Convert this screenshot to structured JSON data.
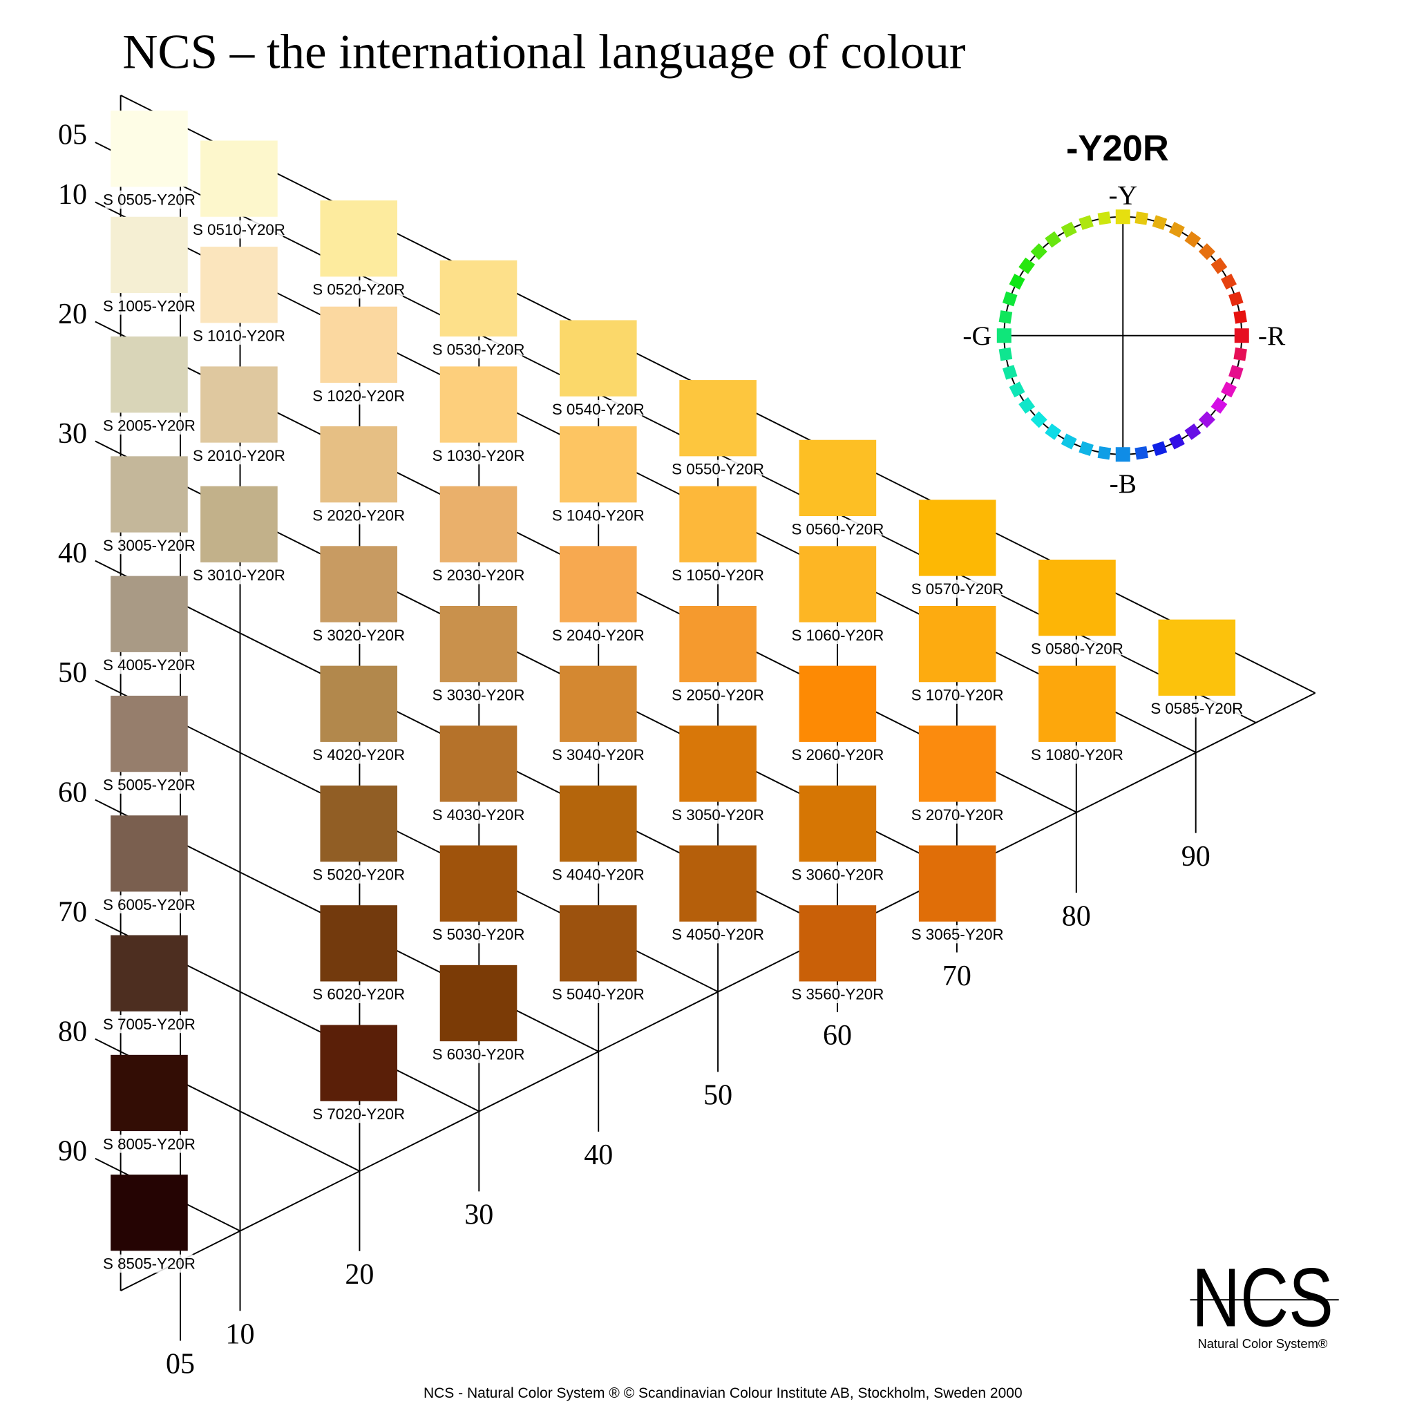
{
  "title": "NCS – the international language of colour",
  "hue": "-Y20R",
  "hue_circle": {
    "top": "-Y",
    "right": "-R",
    "bottom": "-B",
    "left": "-G"
  },
  "blackness_scale": [
    "05",
    "10",
    "20",
    "30",
    "40",
    "50",
    "60",
    "70",
    "80",
    "90"
  ],
  "chromaticness_scale": [
    "05",
    "10",
    "20",
    "30",
    "40",
    "50",
    "60",
    "70",
    "80",
    "90"
  ],
  "columns": [
    [
      {
        "label": "S 0505-Y20R",
        "color": "#fefde6"
      },
      {
        "label": "S 1005-Y20R",
        "color": "#f5efd3"
      },
      {
        "label": "S 2005-Y20R",
        "color": "#d9d5b8"
      },
      {
        "label": "S 3005-Y20R",
        "color": "#c4b79a"
      },
      {
        "label": "S 4005-Y20R",
        "color": "#a99a85"
      },
      {
        "label": "S 5005-Y20R",
        "color": "#967e6c"
      },
      {
        "label": "S 6005-Y20R",
        "color": "#7a5f4f"
      },
      {
        "label": "S 7005-Y20R",
        "color": "#4d2e20"
      },
      {
        "label": "S 8005-Y20R",
        "color": "#330d05"
      },
      {
        "label": "S 8505-Y20R",
        "color": "#250403"
      }
    ],
    [
      {
        "label": "S 0510-Y20R",
        "color": "#fdf7cc"
      },
      {
        "label": "S 1010-Y20R",
        "color": "#fbe5bd"
      },
      {
        "label": "S 2010-Y20R",
        "color": "#dfc89f"
      },
      {
        "label": "S 3010-Y20R",
        "color": "#c2b18a"
      }
    ],
    [
      {
        "label": "S 0520-Y20R",
        "color": "#fdeb9e"
      },
      {
        "label": "S 1020-Y20R",
        "color": "#fbd8a0"
      },
      {
        "label": "S 2020-Y20R",
        "color": "#e6bf84"
      },
      {
        "label": "S 3020-Y20R",
        "color": "#c89b62"
      },
      {
        "label": "S 4020-Y20R",
        "color": "#b2884c"
      },
      {
        "label": "S 5020-Y20R",
        "color": "#915e25"
      },
      {
        "label": "S 6020-Y20R",
        "color": "#733a0d"
      },
      {
        "label": "S 7020-Y20R",
        "color": "#5a1f08"
      }
    ],
    [
      {
        "label": "S 0530-Y20R",
        "color": "#fde08a"
      },
      {
        "label": "S 1030-Y20R",
        "color": "#fdcf7c"
      },
      {
        "label": "S 2030-Y20R",
        "color": "#eab06b"
      },
      {
        "label": "S 3030-Y20R",
        "color": "#c9914c"
      },
      {
        "label": "S 4030-Y20R",
        "color": "#b5722a"
      },
      {
        "label": "S 5030-Y20R",
        "color": "#9f530c"
      },
      {
        "label": "S 6030-Y20R",
        "color": "#7b3b06"
      }
    ],
    [
      {
        "label": "S 0540-Y20R",
        "color": "#fbd86a"
      },
      {
        "label": "S 1040-Y20R",
        "color": "#fdc562"
      },
      {
        "label": "S 2040-Y20R",
        "color": "#f7a950"
      },
      {
        "label": "S 3040-Y20R",
        "color": "#d48831"
      },
      {
        "label": "S 4040-Y20R",
        "color": "#b4650c"
      },
      {
        "label": "S 5040-Y20R",
        "color": "#9c520e"
      }
    ],
    [
      {
        "label": "S 0550-Y20R",
        "color": "#fdc63e"
      },
      {
        "label": "S 1050-Y20R",
        "color": "#fdb83a"
      },
      {
        "label": "S 2050-Y20R",
        "color": "#f59a2e"
      },
      {
        "label": "S 3050-Y20R",
        "color": "#d87709"
      },
      {
        "label": "S 4050-Y20R",
        "color": "#b55f0b"
      }
    ],
    [
      {
        "label": "S 0560-Y20R",
        "color": "#fdbf24"
      },
      {
        "label": "S 1060-Y20R",
        "color": "#fdb624"
      },
      {
        "label": "S 2060-Y20R",
        "color": "#fd8a04"
      },
      {
        "label": "S 3060-Y20R",
        "color": "#d67604"
      },
      {
        "label": "S 3560-Y20R",
        "color": "#c96008"
      }
    ],
    [
      {
        "label": "S 0570-Y20R",
        "color": "#fdb804"
      },
      {
        "label": "S 1070-Y20R",
        "color": "#fdab10"
      },
      {
        "label": "S 2070-Y20R",
        "color": "#fb8b0e"
      },
      {
        "label": "S 3065-Y20R",
        "color": "#e06e08"
      }
    ],
    [
      {
        "label": "S 0580-Y20R",
        "color": "#fdb506"
      },
      {
        "label": "S 1080-Y20R",
        "color": "#fda70c"
      }
    ],
    [
      {
        "label": "S 0585-Y20R",
        "color": "#fcc20c"
      }
    ]
  ],
  "logo": {
    "mark": "NCS",
    "caption": "Natural Color System®"
  },
  "footer": "NCS - Natural Color System ® © Scandinavian Colour Institute AB, Stockholm, Sweden 2000"
}
